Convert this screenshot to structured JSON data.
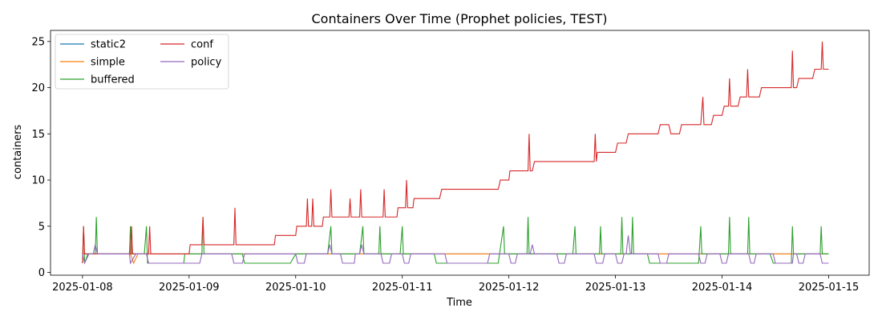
{
  "chart_data": {
    "type": "line",
    "title": "Containers Over Time (Prophet policies, TEST)",
    "xlabel": "Time",
    "ylabel": "containers",
    "x_ticks": [
      "2025-01-08",
      "2025-01-09",
      "2025-01-10",
      "2025-01-11",
      "2025-01-12",
      "2025-01-13",
      "2025-01-14",
      "2025-01-15"
    ],
    "y_ticks": [
      0,
      5,
      10,
      15,
      20,
      25
    ],
    "xlim": [
      -0.3,
      7.38
    ],
    "ylim": [
      -0.3,
      26.2
    ],
    "legend_position": "upper-left",
    "grid": false,
    "series": [
      {
        "name": "static2",
        "color": "#1f77b4",
        "points": [
          [
            0,
            2
          ],
          [
            7,
            2
          ]
        ]
      },
      {
        "name": "simple",
        "color": "#ff7f0e",
        "points": [
          [
            0,
            2
          ],
          [
            0.45,
            2
          ],
          [
            0.48,
            1
          ],
          [
            0.52,
            2
          ],
          [
            0.98,
            2
          ],
          [
            1.0,
            2
          ],
          [
            7,
            2
          ]
        ]
      },
      {
        "name": "buffered",
        "color": "#2ca02c",
        "points": [
          [
            0,
            1
          ],
          [
            0.01,
            5
          ],
          [
            0.02,
            1
          ],
          [
            0.05,
            2
          ],
          [
            0.12,
            2
          ],
          [
            0.13,
            6
          ],
          [
            0.14,
            2
          ],
          [
            0.44,
            2
          ],
          [
            0.45,
            5
          ],
          [
            0.46,
            2
          ],
          [
            0.58,
            2
          ],
          [
            0.6,
            5
          ],
          [
            0.61,
            1
          ],
          [
            0.95,
            1
          ],
          [
            0.96,
            2
          ],
          [
            1.12,
            2
          ],
          [
            1.13,
            6
          ],
          [
            1.14,
            2
          ],
          [
            1.5,
            2
          ],
          [
            1.52,
            1
          ],
          [
            1.95,
            1
          ],
          [
            2.0,
            2
          ],
          [
            2.3,
            2
          ],
          [
            2.33,
            5
          ],
          [
            2.34,
            2
          ],
          [
            2.6,
            2
          ],
          [
            2.63,
            5
          ],
          [
            2.64,
            2
          ],
          [
            2.78,
            2
          ],
          [
            2.79,
            5
          ],
          [
            2.8,
            2
          ],
          [
            2.98,
            2
          ],
          [
            3.0,
            5
          ],
          [
            3.01,
            2
          ],
          [
            3.3,
            2
          ],
          [
            3.32,
            1
          ],
          [
            3.9,
            1
          ],
          [
            3.95,
            5
          ],
          [
            3.96,
            2
          ],
          [
            4.17,
            2
          ],
          [
            4.18,
            6
          ],
          [
            4.19,
            2
          ],
          [
            4.6,
            2
          ],
          [
            4.62,
            5
          ],
          [
            4.63,
            2
          ],
          [
            4.85,
            2
          ],
          [
            4.86,
            5
          ],
          [
            4.87,
            2
          ],
          [
            5.05,
            2
          ],
          [
            5.06,
            6
          ],
          [
            5.07,
            2
          ],
          [
            5.15,
            2
          ],
          [
            5.16,
            6
          ],
          [
            5.17,
            2
          ],
          [
            5.3,
            2
          ],
          [
            5.32,
            1
          ],
          [
            5.78,
            1
          ],
          [
            5.8,
            5
          ],
          [
            5.81,
            2
          ],
          [
            6.06,
            2
          ],
          [
            6.07,
            6
          ],
          [
            6.08,
            2
          ],
          [
            6.24,
            2
          ],
          [
            6.25,
            6
          ],
          [
            6.26,
            2
          ],
          [
            6.45,
            2
          ],
          [
            6.48,
            1
          ],
          [
            6.65,
            1
          ],
          [
            6.66,
            5
          ],
          [
            6.67,
            2
          ],
          [
            6.92,
            2
          ],
          [
            6.93,
            5
          ],
          [
            6.94,
            2
          ],
          [
            7,
            2
          ]
        ]
      },
      {
        "name": "conf",
        "color": "#d62728",
        "points": [
          [
            0,
            1
          ],
          [
            0.01,
            5
          ],
          [
            0.02,
            2
          ],
          [
            0.45,
            2
          ],
          [
            0.46,
            5
          ],
          [
            0.47,
            2
          ],
          [
            0.62,
            2
          ],
          [
            0.63,
            5
          ],
          [
            0.64,
            2
          ],
          [
            1.0,
            2
          ],
          [
            1.01,
            3
          ],
          [
            1.12,
            3
          ],
          [
            1.13,
            6
          ],
          [
            1.14,
            3
          ],
          [
            1.42,
            3
          ],
          [
            1.43,
            7
          ],
          [
            1.44,
            3
          ],
          [
            1.8,
            3
          ],
          [
            1.81,
            4
          ],
          [
            2.0,
            4
          ],
          [
            2.01,
            5
          ],
          [
            2.1,
            5
          ],
          [
            2.11,
            8
          ],
          [
            2.12,
            5
          ],
          [
            2.15,
            5
          ],
          [
            2.16,
            8
          ],
          [
            2.17,
            5
          ],
          [
            2.25,
            5
          ],
          [
            2.26,
            6
          ],
          [
            2.32,
            6
          ],
          [
            2.33,
            9
          ],
          [
            2.34,
            6
          ],
          [
            2.5,
            6
          ],
          [
            2.51,
            8
          ],
          [
            2.52,
            6
          ],
          [
            2.6,
            6
          ],
          [
            2.61,
            9
          ],
          [
            2.62,
            6
          ],
          [
            2.82,
            6
          ],
          [
            2.83,
            9
          ],
          [
            2.84,
            6
          ],
          [
            2.95,
            6
          ],
          [
            2.96,
            7
          ],
          [
            3.03,
            7
          ],
          [
            3.04,
            10
          ],
          [
            3.05,
            7
          ],
          [
            3.1,
            7
          ],
          [
            3.11,
            8
          ],
          [
            3.35,
            8
          ],
          [
            3.37,
            9
          ],
          [
            3.9,
            9
          ],
          [
            3.92,
            10
          ],
          [
            4.0,
            10
          ],
          [
            4.01,
            11
          ],
          [
            4.18,
            11
          ],
          [
            4.19,
            15
          ],
          [
            4.2,
            11
          ],
          [
            4.22,
            11
          ],
          [
            4.24,
            12
          ],
          [
            4.8,
            12
          ],
          [
            4.81,
            15
          ],
          [
            4.82,
            12
          ],
          [
            4.83,
            13
          ],
          [
            5.0,
            13
          ],
          [
            5.02,
            14
          ],
          [
            5.1,
            14
          ],
          [
            5.12,
            15
          ],
          [
            5.4,
            15
          ],
          [
            5.42,
            16
          ],
          [
            5.5,
            16
          ],
          [
            5.52,
            15
          ],
          [
            5.6,
            15
          ],
          [
            5.62,
            16
          ],
          [
            5.8,
            16
          ],
          [
            5.82,
            19
          ],
          [
            5.83,
            16
          ],
          [
            5.9,
            16
          ],
          [
            5.92,
            17
          ],
          [
            6.0,
            17
          ],
          [
            6.02,
            18
          ],
          [
            6.06,
            18
          ],
          [
            6.07,
            21
          ],
          [
            6.08,
            18
          ],
          [
            6.15,
            18
          ],
          [
            6.17,
            19
          ],
          [
            6.23,
            19
          ],
          [
            6.24,
            22
          ],
          [
            6.25,
            19
          ],
          [
            6.35,
            19
          ],
          [
            6.37,
            20
          ],
          [
            6.65,
            20
          ],
          [
            6.66,
            24
          ],
          [
            6.67,
            20
          ],
          [
            6.7,
            20
          ],
          [
            6.72,
            21
          ],
          [
            6.85,
            21
          ],
          [
            6.87,
            22
          ],
          [
            6.93,
            22
          ],
          [
            6.94,
            25
          ],
          [
            6.95,
            22
          ],
          [
            7,
            22
          ]
        ]
      },
      {
        "name": "policy",
        "color": "#9467bd",
        "points": [
          [
            0,
            2
          ],
          [
            0.02,
            1
          ],
          [
            0.06,
            2
          ],
          [
            0.1,
            2
          ],
          [
            0.12,
            3
          ],
          [
            0.14,
            2
          ],
          [
            0.44,
            2
          ],
          [
            0.45,
            1
          ],
          [
            0.5,
            2
          ],
          [
            0.6,
            2
          ],
          [
            0.62,
            1
          ],
          [
            1.1,
            1
          ],
          [
            1.12,
            2
          ],
          [
            1.4,
            2
          ],
          [
            1.42,
            1
          ],
          [
            1.5,
            1
          ],
          [
            1.52,
            2
          ],
          [
            2.0,
            2
          ],
          [
            2.02,
            1
          ],
          [
            2.08,
            1
          ],
          [
            2.1,
            2
          ],
          [
            2.3,
            2
          ],
          [
            2.32,
            3
          ],
          [
            2.34,
            2
          ],
          [
            2.42,
            2
          ],
          [
            2.44,
            1
          ],
          [
            2.55,
            1
          ],
          [
            2.56,
            2
          ],
          [
            2.6,
            2
          ],
          [
            2.62,
            3
          ],
          [
            2.64,
            2
          ],
          [
            2.8,
            2
          ],
          [
            2.82,
            1
          ],
          [
            2.88,
            1
          ],
          [
            2.9,
            2
          ],
          [
            3.0,
            2
          ],
          [
            3.02,
            1
          ],
          [
            3.06,
            1
          ],
          [
            3.08,
            2
          ],
          [
            3.4,
            2
          ],
          [
            3.42,
            1
          ],
          [
            3.8,
            1
          ],
          [
            3.82,
            2
          ],
          [
            4.0,
            2
          ],
          [
            4.02,
            1
          ],
          [
            4.06,
            1
          ],
          [
            4.08,
            2
          ],
          [
            4.2,
            2
          ],
          [
            4.22,
            3
          ],
          [
            4.24,
            2
          ],
          [
            4.45,
            2
          ],
          [
            4.47,
            1
          ],
          [
            4.52,
            1
          ],
          [
            4.54,
            2
          ],
          [
            4.8,
            2
          ],
          [
            4.82,
            1
          ],
          [
            4.88,
            1
          ],
          [
            4.9,
            2
          ],
          [
            5.0,
            2
          ],
          [
            5.02,
            1
          ],
          [
            5.06,
            1
          ],
          [
            5.08,
            2
          ],
          [
            5.1,
            2
          ],
          [
            5.12,
            4
          ],
          [
            5.14,
            2
          ],
          [
            5.4,
            2
          ],
          [
            5.42,
            1
          ],
          [
            5.48,
            1
          ],
          [
            5.5,
            2
          ],
          [
            5.78,
            2
          ],
          [
            5.8,
            1
          ],
          [
            5.84,
            1
          ],
          [
            5.86,
            2
          ],
          [
            5.98,
            2
          ],
          [
            6.0,
            1
          ],
          [
            6.04,
            1
          ],
          [
            6.06,
            2
          ],
          [
            6.25,
            2
          ],
          [
            6.27,
            1
          ],
          [
            6.3,
            1
          ],
          [
            6.32,
            2
          ],
          [
            6.48,
            2
          ],
          [
            6.5,
            1
          ],
          [
            6.66,
            1
          ],
          [
            6.67,
            2
          ],
          [
            6.7,
            2
          ],
          [
            6.72,
            1
          ],
          [
            6.76,
            1
          ],
          [
            6.78,
            2
          ],
          [
            6.92,
            2
          ],
          [
            6.94,
            1
          ],
          [
            7,
            1
          ]
        ]
      }
    ]
  }
}
